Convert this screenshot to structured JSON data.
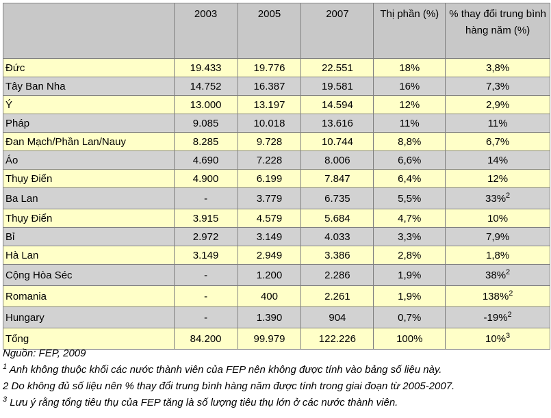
{
  "table": {
    "headers": [
      "",
      "2003",
      "2005",
      "2007",
      "Thị phần (%)",
      "% thay đổi trung bình hàng năm (%)"
    ],
    "rows": [
      {
        "name": "Đức",
        "y2003": "19.433",
        "y2005": "19.776",
        "y2007": "22.551",
        "share": "18%",
        "change": "3,8%",
        "change_sup": ""
      },
      {
        "name": "Tây Ban Nha",
        "y2003": "14.752",
        "y2005": "16.387",
        "y2007": "19.581",
        "share": "16%",
        "change": "7,3%",
        "change_sup": ""
      },
      {
        "name": "Ý",
        "y2003": "13.000",
        "y2005": "13.197",
        "y2007": "14.594",
        "share": "12%",
        "change": "2,9%",
        "change_sup": ""
      },
      {
        "name": "Pháp",
        "y2003": "9.085",
        "y2005": "10.018",
        "y2007": "13.616",
        "share": "11%",
        "change": "11%",
        "change_sup": ""
      },
      {
        "name": "Đan Mạch/Phần Lan/Nauy",
        "y2003": "8.285",
        "y2005": "9.728",
        "y2007": "10.744",
        "share": "8,8%",
        "change": "6,7%",
        "change_sup": ""
      },
      {
        "name": "Áo",
        "y2003": "4.690",
        "y2005": "7.228",
        "y2007": "8.006",
        "share": "6,6%",
        "change": "14%",
        "change_sup": ""
      },
      {
        "name": "Thụy Điển",
        "y2003": "4.900",
        "y2005": "6.199",
        "y2007": "7.847",
        "share": "6,4%",
        "change": "12%",
        "change_sup": ""
      },
      {
        "name": "Ba Lan",
        "y2003": "-",
        "y2005": "3.779",
        "y2007": "6.735",
        "share": "5,5%",
        "change": "33%",
        "change_sup": "2"
      },
      {
        "name": "Thụy Điển",
        "y2003": "3.915",
        "y2005": "4.579",
        "y2007": "5.684",
        "share": "4,7%",
        "change": "10%",
        "change_sup": ""
      },
      {
        "name": "Bỉ",
        "y2003": "2.972",
        "y2005": "3.149",
        "y2007": "4.033",
        "share": "3,3%",
        "change": "7,9%",
        "change_sup": ""
      },
      {
        "name": "Hà Lan",
        "y2003": "3.149",
        "y2005": "2.949",
        "y2007": "3.386",
        "share": "2,8%",
        "change": "1,8%",
        "change_sup": ""
      },
      {
        "name": "Cộng Hòa Séc",
        "y2003": "-",
        "y2005": "1.200",
        "y2007": "2.286",
        "share": "1,9%",
        "change": "38%",
        "change_sup": "2"
      },
      {
        "name": "Romania",
        "y2003": "-",
        "y2005": "400",
        "y2007": "2.261",
        "share": "1,9%",
        "change": "138%",
        "change_sup": "2"
      },
      {
        "name": "Hungary",
        "y2003": "-",
        "y2005": "1.390",
        "y2007": "904",
        "share": "0,7%",
        "change": "-19%",
        "change_sup": "2"
      },
      {
        "name": "Tổng",
        "y2003": "84.200",
        "y2005": "99.979",
        "y2007": "122.226",
        "share": "100%",
        "change": "10%",
        "change_sup": "3"
      }
    ]
  },
  "notes": {
    "source": "Nguồn: FEP, 2009",
    "note1_marker": "1",
    "note1": " Anh không thuộc khối các nước thành viên của FEP nên không được tính vào bảng số liệu này.",
    "note2": "2 Do không đủ số liệu nên % thay đổi trung bình hàng năm được tính trong giai đoạn từ 2005-2007.",
    "note3_marker": "3",
    "note3": " Lưu ý rằng tổng tiêu thụ của FEP tăng là số lượng tiêu thụ lớn ở các nước thành viên."
  },
  "colors": {
    "header_bg": "#c8c8c8",
    "yellow_row": "#ffffc8",
    "gray_row": "#d2d2d2",
    "border": "#808080"
  }
}
